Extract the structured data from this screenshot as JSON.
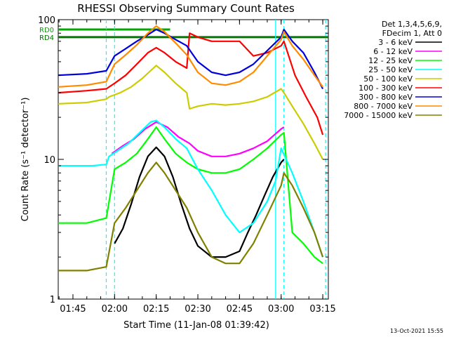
{
  "chart_data": {
    "type": "line",
    "title": "RHESSI Observing Summary Count Rates",
    "xlabel": "Start Time (11-Jan-08 01:39:42)",
    "ylabel": "Count Rate (s⁻¹ detector⁻¹)",
    "y_scale": "log",
    "ylim": [
      1,
      100
    ],
    "xlim": [
      "01:39:42",
      "03:17:00"
    ],
    "x_ticks": [
      "01:45",
      "02:00",
      "02:15",
      "02:30",
      "02:45",
      "03:00",
      "03:15"
    ],
    "y_ticks": [
      "1",
      "10",
      "100"
    ],
    "grid": false,
    "legend_position": "right",
    "legend_header": [
      "Det 1,3,4,5,6,9,",
      "FDecim 1, Att 0"
    ],
    "level_labels": [
      "RD0",
      "RD4"
    ],
    "footer_date": "13-Oct-2021 15:55",
    "x_minutes_note": "",
    "series": [
      {
        "name": "3 - 6 keV",
        "color": "#000000",
        "x": [
          "02:00",
          "02:03",
          "02:06",
          "02:09",
          "02:12",
          "02:15",
          "02:18",
          "02:21",
          "02:24",
          "02:27",
          "02:30",
          "02:35",
          "02:40",
          "02:45",
          "02:48",
          "02:51",
          "02:54",
          "02:57",
          "03:00",
          "03:01"
        ],
        "y": [
          2.5,
          3.2,
          4.8,
          7.5,
          10.5,
          12.2,
          10.5,
          7.5,
          4.8,
          3.2,
          2.4,
          2.0,
          2.0,
          2.2,
          3.0,
          4.0,
          5.5,
          7.5,
          9.5,
          10.0
        ]
      },
      {
        "name": "6 - 12 keV",
        "color": "#ff00ff",
        "x": [
          "01:59",
          "02:03",
          "02:07",
          "02:11",
          "02:15",
          "02:19",
          "02:23",
          "02:27",
          "02:30",
          "02:35",
          "02:40",
          "02:45",
          "02:50",
          "02:55",
          "03:00",
          "03:01"
        ],
        "y": [
          11.0,
          12.5,
          14.0,
          16.5,
          18.5,
          17.0,
          14.5,
          13.0,
          11.5,
          10.5,
          10.5,
          11.0,
          12.0,
          13.5,
          16.5,
          17.0
        ]
      },
      {
        "name": "12 - 25 keV",
        "color": "#00ff00",
        "x": [
          "01:39:42",
          "01:50",
          "01:57",
          "02:00",
          "02:04",
          "02:08",
          "02:12",
          "02:15",
          "02:18",
          "02:22",
          "02:26",
          "02:30",
          "02:35",
          "02:40",
          "02:45",
          "02:50",
          "02:55",
          "03:00",
          "03:01",
          "03:04",
          "03:08",
          "03:12",
          "03:15"
        ],
        "y": [
          3.5,
          3.5,
          3.8,
          8.5,
          9.5,
          11.0,
          14.0,
          17.0,
          14.0,
          11.0,
          9.5,
          8.5,
          8.0,
          8.0,
          8.5,
          10.0,
          12.0,
          15.0,
          15.5,
          3.0,
          2.5,
          2.0,
          1.8
        ]
      },
      {
        "name": "25 - 50 keV",
        "color": "#00ffff",
        "x": [
          "01:39:42",
          "01:52",
          "01:57",
          "01:58",
          "02:01",
          "02:05",
          "02:09",
          "02:13",
          "02:15",
          "02:18",
          "02:22",
          "02:26",
          "02:30",
          "02:35",
          "02:40",
          "02:45",
          "02:50",
          "02:55",
          "02:58",
          "03:00",
          "03:04",
          "03:08",
          "03:12",
          "03:15"
        ],
        "y": [
          9.0,
          9.0,
          9.2,
          10.5,
          11.5,
          13.0,
          15.5,
          18.5,
          19.0,
          17.0,
          14.0,
          12.0,
          8.5,
          6.0,
          4.0,
          3.0,
          3.5,
          5.0,
          7.0,
          12.0,
          8.0,
          5.0,
          3.0,
          2.0
        ]
      },
      {
        "name": "50 - 100 keV",
        "color": "#cccc00",
        "x": [
          "01:39:42",
          "01:50",
          "01:57",
          "01:58",
          "02:02",
          "02:06",
          "02:10",
          "02:14",
          "02:15",
          "02:18",
          "02:22",
          "02:26",
          "02:27",
          "02:30",
          "02:35",
          "02:40",
          "02:45",
          "02:50",
          "02:55",
          "03:00",
          "03:01",
          "03:04",
          "03:08",
          "03:12",
          "03:15"
        ],
        "y": [
          25.0,
          25.5,
          27.0,
          28.0,
          30.0,
          33.0,
          38.0,
          45.0,
          47.0,
          42.0,
          35.0,
          30.0,
          23.0,
          24.0,
          25.0,
          24.5,
          25.0,
          26.0,
          28.0,
          32.0,
          30.0,
          24.0,
          18.0,
          13.0,
          10.0
        ]
      },
      {
        "name": "100 - 300 keV",
        "color": "#ff0000",
        "x": [
          "01:39:42",
          "01:50",
          "01:57",
          "02:00",
          "02:04",
          "02:08",
          "02:12",
          "02:15",
          "02:18",
          "02:22",
          "02:26",
          "02:27",
          "02:30",
          "02:35",
          "02:40",
          "02:45",
          "02:50",
          "02:55",
          "03:00",
          "03:01",
          "03:05",
          "03:09",
          "03:13",
          "03:15"
        ],
        "y": [
          30.0,
          31.0,
          32.0,
          35.0,
          40.0,
          48.0,
          58.0,
          63.0,
          58.0,
          50.0,
          45.0,
          80.0,
          75.0,
          70.0,
          70.0,
          70.0,
          55.0,
          58.0,
          65.0,
          70.0,
          40.0,
          28.0,
          20.0,
          15.0
        ]
      },
      {
        "name": "300 - 800 keV",
        "color": "#0000dd",
        "x": [
          "01:39:42",
          "01:50",
          "01:57",
          "02:00",
          "02:04",
          "02:08",
          "02:12",
          "02:15",
          "02:18",
          "02:22",
          "02:26",
          "02:30",
          "02:35",
          "02:40",
          "02:45",
          "02:50",
          "02:55",
          "03:00",
          "03:01",
          "03:04",
          "03:08",
          "03:12",
          "03:15"
        ],
        "y": [
          40.0,
          41.0,
          43.0,
          55.0,
          62.0,
          70.0,
          78.0,
          85.0,
          80.0,
          72.0,
          65.0,
          50.0,
          42.0,
          40.0,
          42.0,
          48.0,
          60.0,
          75.0,
          85.0,
          70.0,
          58.0,
          42.0,
          32.0
        ]
      },
      {
        "name": "800 - 7000 keV",
        "color": "#ff8c00",
        "x": [
          "01:39:42",
          "01:50",
          "01:57",
          "02:00",
          "02:04",
          "02:08",
          "02:12",
          "02:15",
          "02:18",
          "02:22",
          "02:26",
          "02:30",
          "02:35",
          "02:40",
          "02:45",
          "02:50",
          "02:55",
          "03:00",
          "03:01",
          "03:04",
          "03:08",
          "03:12",
          "03:15"
        ],
        "y": [
          33.0,
          34.0,
          36.0,
          48.0,
          56.0,
          66.0,
          80.0,
          90.0,
          82.0,
          68.0,
          56.0,
          42.0,
          35.0,
          34.0,
          36.0,
          42.0,
          55.0,
          72.0,
          82.0,
          65.0,
          52.0,
          40.0,
          33.0
        ]
      },
      {
        "name": "7000 - 15000 keV",
        "color": "#808000",
        "x": [
          "01:39:42",
          "01:50",
          "01:57",
          "02:00",
          "02:04",
          "02:08",
          "02:12",
          "02:15",
          "02:18",
          "02:22",
          "02:26",
          "02:30",
          "02:35",
          "02:40",
          "02:45",
          "02:50",
          "02:55",
          "03:00",
          "03:01",
          "03:04",
          "03:08",
          "03:12",
          "03:15"
        ],
        "y": [
          1.6,
          1.6,
          1.7,
          3.5,
          4.5,
          6.0,
          8.0,
          9.5,
          8.0,
          6.0,
          4.5,
          3.0,
          2.0,
          1.8,
          1.8,
          2.5,
          4.0,
          6.5,
          8.0,
          6.5,
          4.5,
          3.0,
          2.0
        ]
      }
    ],
    "level_lines": [
      {
        "label": "RD0",
        "color": "#00aa00",
        "y": 85,
        "x_from": "01:39:42",
        "x_to": "02:20"
      },
      {
        "label": "RD4",
        "color": "#007700",
        "y": 75,
        "x_from": "01:39:42",
        "x_to": "03:17:00"
      }
    ],
    "saa_marks": [
      {
        "color": "#00ffff",
        "style": "dashed",
        "x": "01:57"
      },
      {
        "color": "#00ffff",
        "style": "dashed",
        "x": "02:00"
      },
      {
        "color": "#00ffff",
        "style": "solid",
        "x": "02:58"
      },
      {
        "color": "#00ffff",
        "style": "dashed",
        "x": "03:01"
      },
      {
        "color": "#00ffff",
        "style": "dashed",
        "x": "03:16"
      }
    ]
  }
}
